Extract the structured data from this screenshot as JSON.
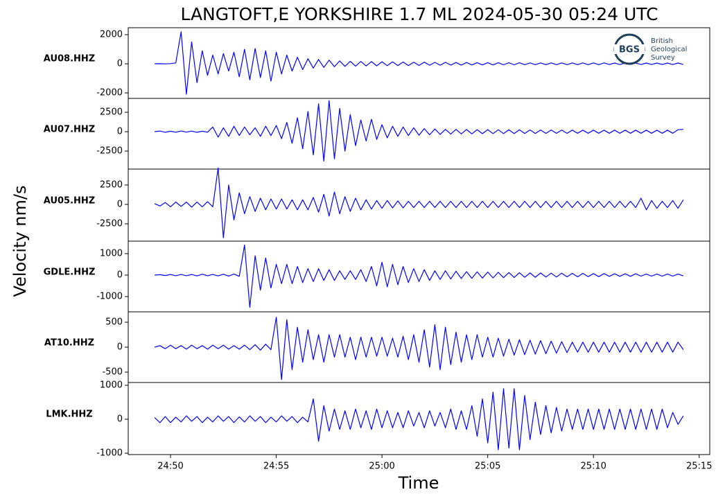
{
  "chart_data": {
    "type": "line",
    "title": "LANGTOFT,E YORKSHIRE 1.7 ML   2024-05-30 05:24 UTC",
    "ylabel": "Velocity nm/s",
    "xlabel": "Time",
    "color": "#0000ff",
    "xlim": [
      1488,
      1515.5
    ],
    "xticks": [
      {
        "value": 1490,
        "label": "24:50"
      },
      {
        "value": 1495,
        "label": "24:55"
      },
      {
        "value": 1500,
        "label": "25:00"
      },
      {
        "value": 1505,
        "label": "25:05"
      },
      {
        "value": 1510,
        "label": "25:10"
      },
      {
        "value": 1515,
        "label": "25:15"
      }
    ],
    "x": [
      1489.25,
      1489.5,
      1489.75,
      1490,
      1490.25,
      1490.5,
      1490.75,
      1491,
      1491.25,
      1491.5,
      1491.75,
      1492,
      1492.25,
      1492.5,
      1492.75,
      1493,
      1493.25,
      1493.5,
      1493.75,
      1494,
      1494.25,
      1494.5,
      1494.75,
      1495,
      1495.25,
      1495.5,
      1495.75,
      1496,
      1496.25,
      1496.5,
      1496.75,
      1497,
      1497.25,
      1497.5,
      1497.75,
      1498,
      1498.25,
      1498.5,
      1498.75,
      1499,
      1499.25,
      1499.5,
      1499.75,
      1500,
      1500.25,
      1500.5,
      1500.75,
      1501,
      1501.25,
      1501.5,
      1501.75,
      1502,
      1502.25,
      1502.5,
      1502.75,
      1503,
      1503.25,
      1503.5,
      1503.75,
      1504,
      1504.25,
      1504.5,
      1504.75,
      1505,
      1505.25,
      1505.5,
      1505.75,
      1506,
      1506.25,
      1506.5,
      1506.75,
      1507,
      1507.25,
      1507.5,
      1507.75,
      1508,
      1508.25,
      1508.5,
      1508.75,
      1509,
      1509.25,
      1509.5,
      1509.75,
      1510,
      1510.25,
      1510.5,
      1510.75,
      1511,
      1511.25,
      1511.5,
      1511.75,
      1512,
      1512.25,
      1512.5,
      1512.75,
      1513,
      1513.25,
      1513.5,
      1513.75,
      1514,
      1514.25
    ],
    "panels": [
      {
        "name": "AU08.HHZ",
        "ylim": [
          -2380,
          2480
        ],
        "yticks": [
          -2000,
          0,
          2000
        ],
        "values": [
          0,
          5,
          -5,
          10,
          60,
          2200,
          -2100,
          1500,
          -1300,
          900,
          -800,
          600,
          -700,
          700,
          -500,
          800,
          -900,
          1000,
          -1100,
          1050,
          -950,
          900,
          -1200,
          800,
          -700,
          600,
          -500,
          450,
          -400,
          350,
          -300,
          300,
          -250,
          250,
          -200,
          200,
          -180,
          170,
          -160,
          160,
          -150,
          150,
          -140,
          140,
          -130,
          130,
          -120,
          120,
          -120,
          110,
          -110,
          110,
          -100,
          100,
          -100,
          100,
          -90,
          90,
          -90,
          90,
          -80,
          80,
          -80,
          80,
          -80,
          70,
          -70,
          70,
          -70,
          70,
          -60,
          60,
          -60,
          60,
          -60,
          60,
          -60,
          60,
          -60,
          60,
          -60,
          60,
          -60,
          60,
          -60,
          60,
          -50,
          50,
          -50,
          50,
          -50,
          50,
          -50,
          50,
          -50,
          50,
          -50,
          50,
          -50,
          50,
          -50
        ]
      },
      {
        "name": "AU07.HHZ",
        "ylim": [
          -4820,
          4290
        ],
        "yticks": [
          -2500,
          0,
          2500
        ],
        "values": [
          0,
          80,
          -80,
          60,
          -70,
          80,
          -60,
          70,
          -80,
          60,
          -70,
          600,
          -700,
          500,
          -600,
          700,
          -500,
          600,
          -400,
          500,
          -600,
          700,
          -500,
          800,
          -900,
          1200,
          -1500,
          1800,
          -2200,
          2600,
          -3000,
          3600,
          -3800,
          4000,
          -3500,
          3000,
          -2500,
          2200,
          -1800,
          1500,
          -1200,
          1600,
          -1000,
          900,
          -800,
          700,
          -600,
          600,
          -500,
          500,
          -450,
          400,
          -400,
          350,
          -350,
          300,
          -300,
          300,
          -280,
          280,
          -280,
          260,
          -260,
          260,
          -250,
          250,
          -250,
          240,
          -240,
          240,
          -230,
          230,
          -230,
          220,
          -220,
          220,
          -210,
          210,
          -210,
          200,
          -200,
          200,
          -200,
          200,
          -200,
          200,
          -200,
          200,
          -200,
          200,
          -200,
          200,
          -200,
          200,
          -200,
          200,
          -200,
          200,
          -200,
          250,
          300
        ]
      },
      {
        "name": "AU05.HHZ",
        "ylim": [
          -4730,
          4550
        ],
        "yticks": [
          -2500,
          0,
          2500
        ],
        "values": [
          100,
          -200,
          250,
          -300,
          300,
          -250,
          300,
          -350,
          300,
          -300,
          350,
          -300,
          4700,
          -4300,
          2500,
          -2000,
          1500,
          -1200,
          1000,
          -900,
          800,
          -700,
          700,
          -600,
          700,
          -600,
          600,
          -700,
          600,
          -700,
          900,
          -1000,
          1300,
          -1500,
          1600,
          -1200,
          1000,
          -900,
          800,
          -700,
          600,
          -600,
          500,
          -500,
          500,
          -450,
          450,
          -450,
          400,
          -400,
          400,
          -400,
          400,
          -400,
          400,
          -400,
          400,
          -400,
          400,
          -400,
          400,
          -400,
          400,
          -400,
          400,
          -400,
          400,
          -400,
          400,
          -400,
          400,
          -400,
          400,
          -400,
          400,
          -400,
          400,
          -400,
          400,
          -400,
          400,
          -400,
          400,
          -400,
          400,
          -400,
          400,
          -400,
          400,
          -400,
          400,
          -400,
          800,
          -700,
          500,
          -500,
          400,
          -400,
          500,
          -500,
          600
        ]
      },
      {
        "name": "GDLE.HHZ",
        "ylim": [
          -1710,
          1580
        ],
        "yticks": [
          -1000,
          0,
          1000
        ],
        "values": [
          0,
          20,
          -20,
          30,
          -30,
          30,
          -30,
          30,
          -40,
          40,
          -30,
          30,
          -40,
          40,
          -50,
          50,
          -60,
          1400,
          -1500,
          900,
          -700,
          800,
          -600,
          500,
          -400,
          500,
          -400,
          400,
          -350,
          300,
          -300,
          300,
          -250,
          250,
          -250,
          200,
          -200,
          200,
          -200,
          250,
          -300,
          400,
          -500,
          600,
          -550,
          500,
          -450,
          400,
          -350,
          300,
          -300,
          250,
          -250,
          200,
          -200,
          200,
          -180,
          180,
          -160,
          160,
          -150,
          150,
          -140,
          140,
          -130,
          130,
          -120,
          120,
          -110,
          110,
          -100,
          100,
          -100,
          100,
          -90,
          90,
          -90,
          90,
          -80,
          80,
          -80,
          80,
          -70,
          70,
          -70,
          70,
          -60,
          60,
          -60,
          60,
          -60,
          60,
          -50,
          50,
          -50,
          50,
          -50,
          50,
          -50,
          50,
          -40
        ]
      },
      {
        "name": "AT10.HHZ",
        "ylim": [
          -708,
          708
        ],
        "yticks": [
          -500,
          0,
          500
        ],
        "values": [
          0,
          30,
          -30,
          40,
          -30,
          30,
          -40,
          40,
          -30,
          30,
          -40,
          40,
          -30,
          40,
          -40,
          30,
          -40,
          40,
          -50,
          50,
          -60,
          60,
          -50,
          600,
          -650,
          550,
          -450,
          400,
          -300,
          350,
          -250,
          250,
          -300,
          250,
          -200,
          250,
          -200,
          200,
          -250,
          200,
          -200,
          200,
          -180,
          200,
          -180,
          180,
          -200,
          220,
          -250,
          250,
          -300,
          350,
          -400,
          450,
          -450,
          400,
          -350,
          300,
          -300,
          250,
          -250,
          250,
          -200,
          200,
          -200,
          180,
          -180,
          160,
          -160,
          150,
          -150,
          140,
          -140,
          130,
          -130,
          120,
          -120,
          110,
          -110,
          100,
          -100,
          100,
          -100,
          100,
          -100,
          100,
          -100,
          100,
          -100,
          100,
          -100,
          100,
          -100,
          100,
          -100,
          100,
          -100,
          100,
          -100,
          100,
          -50
        ]
      },
      {
        "name": "LMK.HHZ",
        "ylim": [
          -1041,
          1082
        ],
        "yticks": [
          -1000,
          0,
          1000
        ],
        "values": [
          50,
          -100,
          80,
          -100,
          60,
          -80,
          100,
          -60,
          80,
          -100,
          60,
          -80,
          100,
          -60,
          80,
          -100,
          70,
          -80,
          100,
          -60,
          80,
          -100,
          60,
          -80,
          100,
          -60,
          80,
          -100,
          60,
          -80,
          600,
          -650,
          400,
          -350,
          300,
          -300,
          250,
          -300,
          300,
          -250,
          250,
          -300,
          300,
          -250,
          250,
          -250,
          200,
          -250,
          250,
          -200,
          200,
          -250,
          250,
          -200,
          200,
          -250,
          300,
          -300,
          250,
          -300,
          400,
          -500,
          600,
          -700,
          800,
          -900,
          900,
          -850,
          900,
          -900,
          700,
          -600,
          500,
          -450,
          400,
          -400,
          350,
          -350,
          300,
          -300,
          300,
          -300,
          300,
          -300,
          300,
          -300,
          300,
          -300,
          300,
          -300,
          300,
          -300,
          300,
          -300,
          300,
          -300,
          300,
          -250,
          200,
          -150,
          100
        ]
      }
    ]
  },
  "logo": {
    "abbr": "BGS",
    "lines": [
      "British",
      "Geological",
      "Survey"
    ]
  }
}
